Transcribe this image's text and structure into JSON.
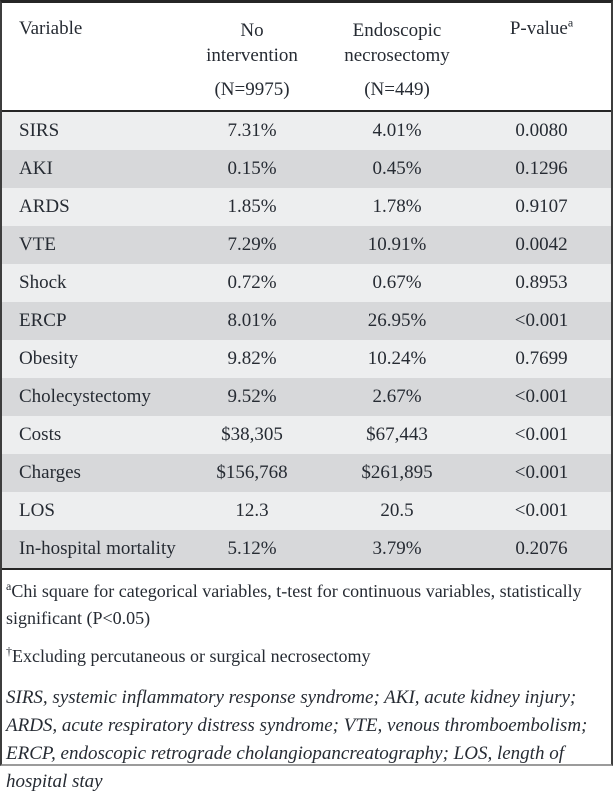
{
  "table": {
    "header": {
      "col1": "Variable",
      "col2": {
        "line1": "No",
        "line2": "intervention",
        "n": "(N=9975)"
      },
      "col3": {
        "line1": "Endoscopic",
        "line2": "necrosectomy",
        "n": "(N=449)"
      },
      "col4": {
        "label": "P-value",
        "sup": "a"
      }
    },
    "rows": [
      {
        "variable": "SIRS",
        "no_intervention": "7.31%",
        "endoscopic_necrosectomy": "4.01%",
        "p_value": "0.0080"
      },
      {
        "variable": "AKI",
        "no_intervention": "0.15%",
        "endoscopic_necrosectomy": "0.45%",
        "p_value": "0.1296"
      },
      {
        "variable": "ARDS",
        "no_intervention": "1.85%",
        "endoscopic_necrosectomy": "1.78%",
        "p_value": "0.9107"
      },
      {
        "variable": "VTE",
        "no_intervention": "7.29%",
        "endoscopic_necrosectomy": "10.91%",
        "p_value": "0.0042"
      },
      {
        "variable": "Shock",
        "no_intervention": "0.72%",
        "endoscopic_necrosectomy": "0.67%",
        "p_value": "0.8953"
      },
      {
        "variable": "ERCP",
        "no_intervention": "8.01%",
        "endoscopic_necrosectomy": "26.95%",
        "p_value": "<0.001"
      },
      {
        "variable": "Obesity",
        "no_intervention": "9.82%",
        "endoscopic_necrosectomy": "10.24%",
        "p_value": "0.7699"
      },
      {
        "variable": "Cholecystectomy",
        "no_intervention": "9.52%",
        "endoscopic_necrosectomy": "2.67%",
        "p_value": "<0.001"
      },
      {
        "variable": "Costs",
        "no_intervention": "$38,305",
        "endoscopic_necrosectomy": "$67,443",
        "p_value": "<0.001"
      },
      {
        "variable": "Charges",
        "no_intervention": "$156,768",
        "endoscopic_necrosectomy": "$261,895",
        "p_value": "<0.001"
      },
      {
        "variable": "LOS",
        "no_intervention": "12.3",
        "endoscopic_necrosectomy": "20.5",
        "p_value": "<0.001"
      },
      {
        "variable": "In-hospital mortality",
        "no_intervention": "5.12%",
        "endoscopic_necrosectomy": "3.79%",
        "p_value": "0.2076"
      }
    ]
  },
  "footnotes": {
    "a": {
      "marker": "a",
      "text": "Chi square for categorical variables, t-test for continuous variables, statistically significant (P<0.05)"
    },
    "dagger": {
      "marker": "†",
      "text": "Excluding percutaneous or surgical necrosectomy"
    },
    "abbreviations": "SIRS, systemic inflammatory response syndrome; AKI, acute kidney injury; ARDS, acute respiratory distress syndrome; VTE, venous thromboembolism; ERCP, endoscopic retrograde cholangiopancreatography; LOS, length of hospital stay"
  },
  "colors": {
    "row_light": "#EDEEEF",
    "row_dark": "#D7D8DA",
    "rule": "#262626",
    "text": "#262B33"
  }
}
